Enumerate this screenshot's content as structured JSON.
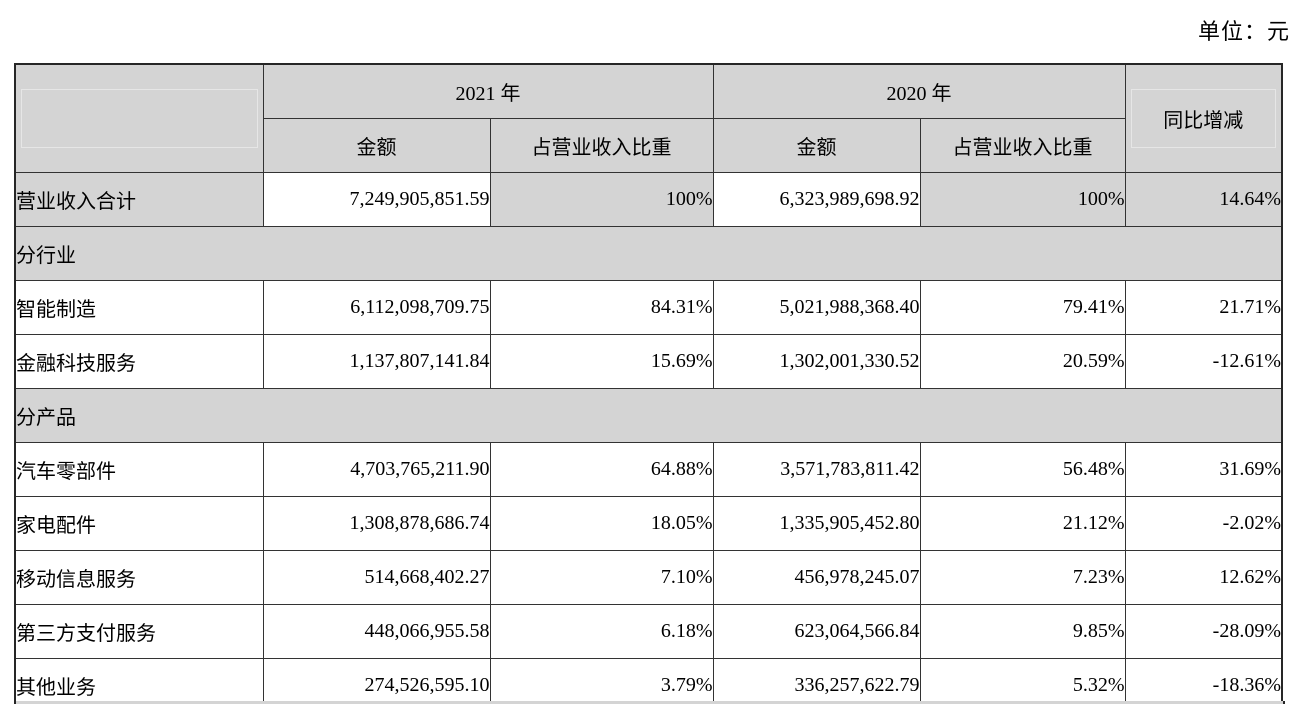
{
  "unit_label": "单位：元",
  "colors": {
    "section_bg": "#d4d4d4",
    "border": "#333333",
    "text": "#000000",
    "page_bg": "#ffffff"
  },
  "table": {
    "header": {
      "year_2021": "2021 年",
      "year_2020": "2020 年",
      "amount": "金额",
      "share": "占营业收入比重",
      "yoy": "同比增减"
    },
    "rows": [
      {
        "type": "total",
        "label": "营业收入合计",
        "amount_2021": "7,249,905,851.59",
        "share_2021": "100%",
        "amount_2020": "6,323,989,698.92",
        "share_2020": "100%",
        "yoy": "14.64%"
      },
      {
        "type": "section",
        "label": "分行业"
      },
      {
        "type": "data",
        "label": "智能制造",
        "amount_2021": "6,112,098,709.75",
        "share_2021": "84.31%",
        "amount_2020": "5,021,988,368.40",
        "share_2020": "79.41%",
        "yoy": "21.71%"
      },
      {
        "type": "data",
        "label": "金融科技服务",
        "amount_2021": "1,137,807,141.84",
        "share_2021": "15.69%",
        "amount_2020": "1,302,001,330.52",
        "share_2020": "20.59%",
        "yoy": "-12.61%"
      },
      {
        "type": "section",
        "label": "分产品"
      },
      {
        "type": "data",
        "label": "汽车零部件",
        "amount_2021": "4,703,765,211.90",
        "share_2021": "64.88%",
        "amount_2020": "3,571,783,811.42",
        "share_2020": "56.48%",
        "yoy": "31.69%"
      },
      {
        "type": "data",
        "label": "家电配件",
        "amount_2021": "1,308,878,686.74",
        "share_2021": "18.05%",
        "amount_2020": "1,335,905,452.80",
        "share_2020": "21.12%",
        "yoy": "-2.02%"
      },
      {
        "type": "data",
        "label": "移动信息服务",
        "amount_2021": "514,668,402.27",
        "share_2021": "7.10%",
        "amount_2020": "456,978,245.07",
        "share_2020": "7.23%",
        "yoy": "12.62%"
      },
      {
        "type": "data",
        "label": "第三方支付服务",
        "amount_2021": "448,066,955.58",
        "share_2021": "6.18%",
        "amount_2020": "623,064,566.84",
        "share_2020": "9.85%",
        "yoy": "-28.09%"
      },
      {
        "type": "data",
        "label": "其他业务",
        "amount_2021": "274,526,595.10",
        "share_2021": "3.79%",
        "amount_2020": "336,257,622.79",
        "share_2020": "5.32%",
        "yoy": "-18.36%"
      }
    ]
  }
}
